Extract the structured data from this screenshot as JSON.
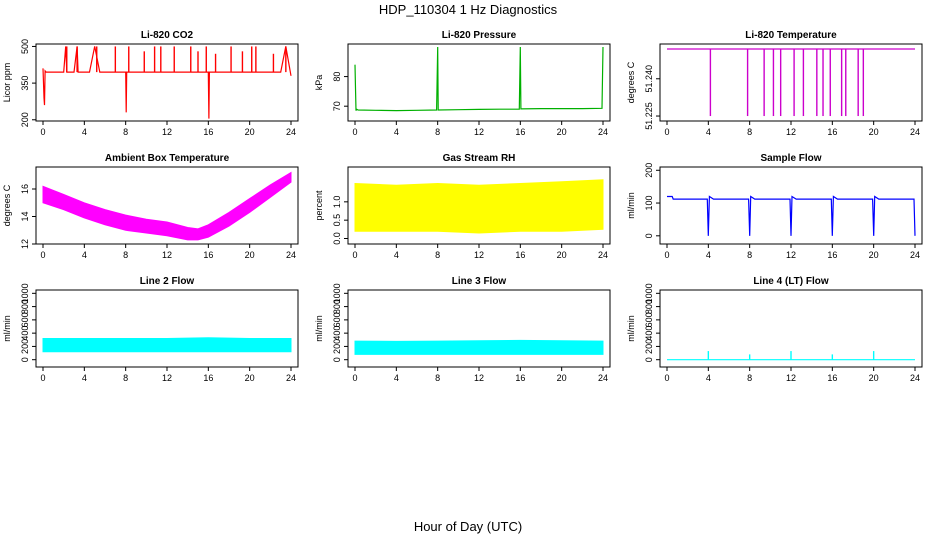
{
  "figure": {
    "title": "HDP_110304  1 Hz Diagnostics",
    "xlabel": "Hour of Day (UTC)"
  },
  "chart_data": [
    {
      "type": "line",
      "title": "Li-820 CO2",
      "ylabel": "Licor ppm",
      "color": "#ff0000",
      "xlim": [
        0,
        24
      ],
      "ylim": [
        195,
        510
      ],
      "xticks": [
        0,
        4,
        8,
        12,
        16,
        20,
        24
      ],
      "yticks": [
        200,
        350,
        500
      ],
      "series": [
        {
          "x": [
            0,
            0.1,
            0.15,
            0.2,
            0.3,
            1,
            2,
            2.2,
            2.3,
            3,
            3.3,
            3.4,
            4,
            4.5,
            5,
            5.5,
            6,
            7,
            8,
            8.05,
            8.1,
            9,
            10,
            11,
            12,
            13,
            14,
            15,
            16,
            16.05,
            16.1,
            17,
            18,
            19,
            20,
            21,
            22,
            23,
            23.5,
            24
          ],
          "y": [
            410,
            290,
            260,
            400,
            395,
            395,
            395,
            500,
            395,
            395,
            500,
            395,
            395,
            395,
            500,
            395,
            395,
            395,
            395,
            230,
            395,
            395,
            395,
            395,
            395,
            395,
            395,
            395,
            395,
            205,
            395,
            395,
            395,
            395,
            395,
            395,
            395,
            395,
            500,
            380
          ]
        }
      ],
      "spikes": {
        "baseline": 395,
        "x": [
          2.3,
          3.3,
          5.2,
          7.0,
          8.3,
          9.8,
          10.8,
          11.4,
          12.7,
          14.3,
          15.0,
          15.8,
          16.7,
          18.2,
          19.3,
          20.2,
          20.6,
          22.3,
          23.5
        ],
        "y": [
          500,
          500,
          500,
          500,
          500,
          480,
          500,
          500,
          500,
          500,
          480,
          500,
          470,
          500,
          480,
          500,
          500,
          470,
          500
        ]
      }
    },
    {
      "type": "line",
      "title": "Li-820 Pressure",
      "ylabel": "kPa",
      "color": "#00b000",
      "xlim": [
        0,
        24
      ],
      "ylim": [
        65,
        91
      ],
      "xticks": [
        0,
        4,
        8,
        12,
        16,
        20,
        24
      ],
      "yticks": [
        70,
        80
      ],
      "series": [
        {
          "x": [
            0,
            0.05,
            0.1,
            0.15,
            0.3,
            2,
            4,
            6,
            7.9,
            8,
            8.05,
            10,
            12,
            14,
            15.9,
            16,
            16.05,
            18,
            20,
            22,
            23.9,
            24
          ],
          "y": [
            84,
            76,
            68.5,
            69,
            68.7,
            68.6,
            68.5,
            68.6,
            68.7,
            90,
            68.7,
            68.8,
            68.9,
            69.0,
            69.0,
            90,
            69.1,
            69.2,
            69.2,
            69.2,
            69.3,
            90
          ]
        }
      ]
    },
    {
      "type": "line",
      "title": "Li-820 Temperature",
      "ylabel": "degrees C",
      "color": "#cc00cc",
      "xlim": [
        0,
        24
      ],
      "ylim": [
        51.223,
        51.254
      ],
      "xticks": [
        0,
        4,
        8,
        12,
        16,
        20,
        24
      ],
      "yticks": [
        51.225,
        51.24
      ],
      "y_tick_labels": [
        "51.225",
        "51.240"
      ],
      "series": [
        {
          "x": [
            0,
            24
          ],
          "y": [
            51.252,
            51.252
          ]
        }
      ],
      "dropouts": {
        "baseline": 51.252,
        "x": [
          4.2,
          7.8,
          9.4,
          10.3,
          11.0,
          12.3,
          13.2,
          14.5,
          15.1,
          15.8,
          16.9,
          17.3,
          18.5,
          19.0
        ],
        "y": [
          51.225,
          51.225,
          51.225,
          51.225,
          51.225,
          51.225,
          51.225,
          51.225,
          51.225,
          51.225,
          51.225,
          51.225,
          51.225,
          51.225
        ]
      }
    },
    {
      "type": "area",
      "title": "Ambient Box Temperature",
      "ylabel": "degrees C",
      "color": "#ff00ff",
      "xlim": [
        0,
        24
      ],
      "ylim": [
        12,
        17.6
      ],
      "xticks": [
        0,
        4,
        8,
        12,
        16,
        20,
        24
      ],
      "yticks": [
        12,
        14,
        16
      ],
      "series": [
        {
          "x": [
            0,
            2,
            4,
            6,
            8,
            10,
            12,
            14,
            15,
            16,
            18,
            20,
            22,
            24
          ],
          "lower": [
            15.0,
            14.5,
            13.9,
            13.4,
            13.0,
            12.8,
            12.6,
            12.3,
            12.3,
            12.5,
            13.3,
            14.3,
            15.4,
            16.5
          ],
          "upper": [
            16.2,
            15.6,
            15.0,
            14.5,
            14.1,
            13.8,
            13.6,
            13.2,
            13.1,
            13.4,
            14.3,
            15.3,
            16.3,
            17.2
          ]
        }
      ]
    },
    {
      "type": "area",
      "title": "Gas Stream RH",
      "ylabel": "percent",
      "color": "#ffff00",
      "xlim": [
        0,
        24
      ],
      "ylim": [
        -0.15,
        1.95
      ],
      "xticks": [
        0,
        4,
        8,
        12,
        16,
        20,
        24
      ],
      "yticks": [
        0,
        0.5,
        1.0
      ],
      "y_tick_labels": [
        "0.0",
        "0.5",
        "1.0"
      ],
      "series": [
        {
          "x": [
            0,
            4,
            8,
            12,
            16,
            20,
            24
          ],
          "lower": [
            0.2,
            0.2,
            0.2,
            0.15,
            0.2,
            0.2,
            0.25
          ],
          "upper": [
            1.5,
            1.45,
            1.5,
            1.45,
            1.5,
            1.55,
            1.6
          ]
        }
      ]
    },
    {
      "type": "line",
      "title": "Sample Flow",
      "ylabel": "ml/min",
      "color": "#0000ff",
      "xlim": [
        0,
        24
      ],
      "ylim": [
        -25,
        210
      ],
      "xticks": [
        0,
        4,
        8,
        12,
        16,
        20,
        24
      ],
      "yticks": [
        0,
        100,
        200
      ],
      "series": [
        {
          "x": [
            0,
            0.5,
            0.6,
            3.9,
            4.0,
            4.1,
            4.5,
            7.9,
            8.0,
            8.1,
            8.5,
            11.9,
            12.0,
            12.1,
            12.5,
            15.9,
            16.0,
            16.1,
            16.5,
            19.9,
            20.0,
            20.1,
            20.5,
            23.9,
            24.0
          ],
          "y": [
            120,
            120,
            112,
            112,
            0,
            120,
            112,
            112,
            0,
            120,
            112,
            112,
            0,
            120,
            112,
            112,
            0,
            120,
            112,
            112,
            0,
            120,
            112,
            112,
            0
          ]
        }
      ]
    },
    {
      "type": "area",
      "title": "Line 2 Flow",
      "ylabel": "ml/min",
      "color": "#00ffff",
      "xlim": [
        0,
        24
      ],
      "ylim": [
        -110,
        1050
      ],
      "xticks": [
        0,
        4,
        8,
        12,
        16,
        20,
        24
      ],
      "yticks": [
        0,
        200,
        400,
        600,
        800,
        1000
      ],
      "series": [
        {
          "x": [
            0,
            4,
            8,
            12,
            16,
            20,
            24
          ],
          "lower": [
            120,
            120,
            120,
            120,
            120,
            120,
            120
          ],
          "upper": [
            320,
            320,
            320,
            320,
            330,
            320,
            320
          ]
        }
      ]
    },
    {
      "type": "area",
      "title": "Line 3 Flow",
      "ylabel": "ml/min",
      "color": "#00ffff",
      "xlim": [
        0,
        24
      ],
      "ylim": [
        -110,
        1050
      ],
      "xticks": [
        0,
        4,
        8,
        12,
        16,
        20,
        24
      ],
      "yticks": [
        0,
        200,
        400,
        600,
        800,
        1000
      ],
      "series": [
        {
          "x": [
            0,
            4,
            8,
            12,
            16,
            20,
            24
          ],
          "lower": [
            80,
            80,
            80,
            80,
            80,
            80,
            80
          ],
          "upper": [
            280,
            275,
            280,
            285,
            290,
            285,
            280
          ]
        }
      ]
    },
    {
      "type": "line",
      "title": "Line 4 (LT) Flow",
      "ylabel": "ml/min",
      "color": "#00ffff",
      "xlim": [
        0,
        24
      ],
      "ylim": [
        -110,
        1050
      ],
      "xticks": [
        0,
        4,
        8,
        12,
        16,
        20,
        24
      ],
      "yticks": [
        0,
        200,
        400,
        600,
        800,
        1000
      ],
      "series": [
        {
          "x": [
            0,
            24
          ],
          "y": [
            0,
            0
          ]
        }
      ],
      "spikes": {
        "baseline": 0,
        "x": [
          4.0,
          8.0,
          12.0,
          16.0,
          20.0
        ],
        "y": [
          130,
          80,
          130,
          80,
          130
        ]
      }
    }
  ]
}
